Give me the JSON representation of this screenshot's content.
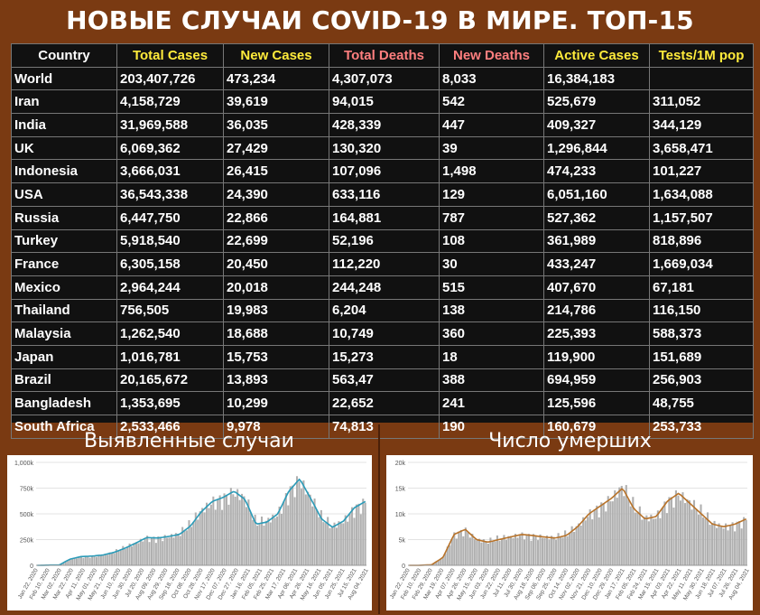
{
  "page": {
    "title": "НОВЫЕ СЛУЧАИ COVID-19 В МИРЕ. ТОП-15"
  },
  "table": {
    "headers": [
      "Country",
      "Total Cases",
      "New Cases",
      "Total Deaths",
      "New Deaths",
      "Active Cases",
      "Tests/1M pop"
    ],
    "header_colors": [
      "#ffffff",
      "#ffeb3b",
      "#ffeb3b",
      "#ff7f7f",
      "#ff7f7f",
      "#ffeb3b",
      "#ffeb3b"
    ],
    "rows": [
      [
        "World",
        "203,407,726",
        "473,234",
        "4,307,073",
        "8,033",
        "16,384,183",
        ""
      ],
      [
        "Iran",
        "4,158,729",
        "39,619",
        "94,015",
        "542",
        "525,679",
        "311,052"
      ],
      [
        "India",
        "31,969,588",
        "36,035",
        "428,339",
        "447",
        "409,327",
        "344,129"
      ],
      [
        "UK",
        "6,069,362",
        "27,429",
        "130,320",
        "39",
        "1,296,844",
        "3,658,471"
      ],
      [
        "Indonesia",
        "3,666,031",
        "26,415",
        "107,096",
        "1,498",
        "474,233",
        "101,227"
      ],
      [
        "USA",
        "36,543,338",
        "24,390",
        "633,116",
        "129",
        "6,051,160",
        "1,634,088"
      ],
      [
        "Russia",
        "6,447,750",
        "22,866",
        "164,881",
        "787",
        "527,362",
        "1,157,507"
      ],
      [
        "Turkey",
        "5,918,540",
        "22,699",
        "52,196",
        "108",
        "361,989",
        "818,896"
      ],
      [
        "France",
        "6,305,158",
        "20,450",
        "112,220",
        "30",
        "433,247",
        "1,669,034"
      ],
      [
        "Mexico",
        "2,964,244",
        "20,018",
        "244,248",
        "515",
        "407,670",
        "67,181"
      ],
      [
        "Thailand",
        "756,505",
        "19,983",
        "6,204",
        "138",
        "214,786",
        "116,150"
      ],
      [
        "Malaysia",
        "1,262,540",
        "18,688",
        "10,749",
        "360",
        "225,393",
        "588,373"
      ],
      [
        "Japan",
        "1,016,781",
        "15,753",
        "15,273",
        "18",
        "119,900",
        "151,689"
      ],
      [
        "Brazil",
        "20,165,672",
        "13,893",
        "563,47",
        "388",
        "694,959",
        "256,903"
      ],
      [
        "Bangladesh",
        "1,353,695",
        "10,299",
        "22,652",
        "241",
        "125,596",
        "48,755"
      ],
      [
        "South Africa",
        "2,533,466",
        "9,978",
        "74,813",
        "190",
        "160,679",
        "253,733"
      ]
    ]
  },
  "colors": {
    "background": "#7a3a12",
    "table_bg": "#111111",
    "bar": "#b0b0b0",
    "cases_line": "#2b9bb8",
    "deaths_line": "#b8732a"
  },
  "chart_data": [
    {
      "type": "bar",
      "title": "Выявленные случаи",
      "x": [
        "Jan 22, 2020",
        "Feb 10, 2020",
        "Feb 29, 2020",
        "Mar 19, 2020",
        "Apr 07, 2020",
        "Apr 26, 2020",
        "May 15, 2020",
        "Jun 03, 2020",
        "Jun 22, 2020",
        "Jul 11, 2020",
        "Jul 30, 2020",
        "Aug 18, 2020",
        "Sep 06, 2020",
        "Sep 25, 2020",
        "Oct 14, 2020",
        "Nov 02, 2020",
        "Nov 21, 2020",
        "Dec 10, 2020",
        "Dec 29, 2020",
        "Jan 17, 2021",
        "Feb 05, 2021",
        "Feb 24, 2021",
        "Mar 15, 2021",
        "Apr 03, 2021",
        "Apr 22, 2021",
        "May 11, 2021",
        "May 30, 2021",
        "Jun 18, 2021",
        "Jul 07, 2021",
        "Jul 26, 2021",
        "Aug 04, 2021"
      ],
      "x_tick_labels": [
        "Jan 22, 2020",
        "Feb 10, 2020",
        "Mar 02, 2020",
        "Mar 22, 2020",
        "Apr 11, 2020",
        "May 01, 2020",
        "May 21, 2020",
        "Jun 10, 2020",
        "Jun 30, 2020",
        "Jul 20, 2020",
        "Aug 09, 2020",
        "Aug 29, 2020",
        "Sep 18, 2020",
        "Oct 08, 2020",
        "Oct 28, 2020",
        "Nov 17, 2020",
        "Dec 07, 2020",
        "Dec 27, 2020",
        "Jan 16, 2021",
        "Feb 05, 2021",
        "Feb 25, 2021",
        "Mar 17, 2021",
        "Apr 06, 2021",
        "Apr 26, 2021",
        "May 16, 2021",
        "Jun 05, 2021",
        "Jun 25, 2021",
        "Jul 15, 2021",
        "Aug 04, 2021"
      ],
      "values": [
        0,
        2000,
        3000,
        60000,
        85000,
        90000,
        100000,
        125000,
        165000,
        215000,
        270000,
        265000,
        280000,
        300000,
        380000,
        520000,
        620000,
        660000,
        720000,
        640000,
        400000,
        420000,
        500000,
        720000,
        840000,
        650000,
        450000,
        370000,
        430000,
        560000,
        620000
      ],
      "y_ticks": [
        "0",
        "250k",
        "500k",
        "750k",
        "1,000k"
      ],
      "ylim": [
        0,
        1000000
      ]
    },
    {
      "type": "bar",
      "title": "Число умерших",
      "x": [
        "Jan 22, 2020",
        "Feb 10, 2020",
        "Feb 29, 2020",
        "Mar 19, 2020",
        "Apr 07, 2020",
        "Apr 26, 2020",
        "May 15, 2020",
        "Jun 03, 2020",
        "Jun 22, 2020",
        "Jul 11, 2020",
        "Jul 30, 2020",
        "Aug 18, 2020",
        "Sep 06, 2020",
        "Sep 25, 2020",
        "Oct 14, 2020",
        "Nov 02, 2020",
        "Nov 21, 2020",
        "Dec 10, 2020",
        "Dec 29, 2020",
        "Jan 17, 2021",
        "Feb 05, 2021",
        "Feb 24, 2021",
        "Mar 15, 2021",
        "Apr 03, 2021",
        "Apr 22, 2021",
        "May 11, 2021",
        "May 30, 2021",
        "Jun 18, 2021",
        "Jul 07, 2021",
        "Jul 26, 2021",
        "Aug 04, 2021"
      ],
      "x_tick_labels": [
        "Jan 22, 2020",
        "Feb 10, 2020",
        "Feb 29, 2020",
        "Mar 19, 2020",
        "Apr 07, 2020",
        "Apr 26, 2020",
        "May 15, 2020",
        "Jun 03, 2020",
        "Jun 22, 2020",
        "Jul 11, 2020",
        "Jul 30, 2020",
        "Aug 18, 2020",
        "Sep 06, 2020",
        "Sep 25, 2020",
        "Oct 14, 2020",
        "Nov 02, 2020",
        "Nov 21, 2020",
        "Dec 10, 2020",
        "Dec 29, 2020",
        "Jan 17, 2021",
        "Feb 05, 2021",
        "Feb 24, 2021",
        "Mar 15, 2021",
        "Apr 03, 2021",
        "Apr 22, 2021",
        "May 11, 2021",
        "May 30, 2021",
        "Jun 18, 2021",
        "Jul 07, 2021",
        "Jul 26, 2021",
        "Aug 04, 2021"
      ],
      "values": [
        0,
        10,
        100,
        1500,
        6000,
        7000,
        5000,
        4500,
        5000,
        5500,
        6000,
        5800,
        5500,
        5300,
        5800,
        7500,
        10000,
        11500,
        13000,
        15000,
        11000,
        9000,
        9500,
        12500,
        14000,
        12000,
        10000,
        8000,
        7500,
        8000,
        9000
      ],
      "y_ticks": [
        "0",
        "5k",
        "10k",
        "15k",
        "20k"
      ],
      "ylim": [
        0,
        20000
      ]
    }
  ]
}
